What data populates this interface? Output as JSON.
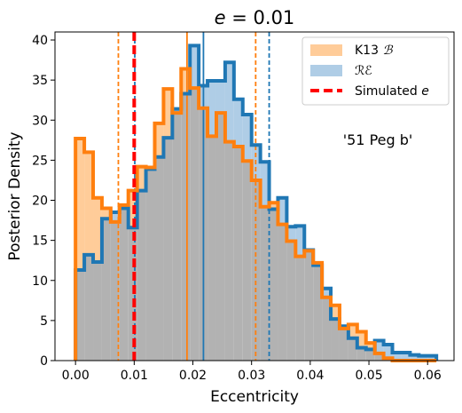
{
  "chart_data": {
    "type": "histogram",
    "title": "e = 0.01",
    "xlabel": "Eccentricity",
    "ylabel": "Posterior Density",
    "xlim": [
      -0.0035,
      0.0645
    ],
    "ylim": [
      0,
      41
    ],
    "xticks": [
      0.0,
      0.01,
      0.02,
      0.03,
      0.04,
      0.05,
      0.06
    ],
    "xtick_labels": [
      "0.00",
      "0.01",
      "0.02",
      "0.03",
      "0.04",
      "0.05",
      "0.06"
    ],
    "yticks": [
      0,
      5,
      10,
      15,
      20,
      25,
      30,
      35,
      40
    ],
    "ytick_labels": [
      "0",
      "5",
      "10",
      "15",
      "20",
      "25",
      "30",
      "35",
      "40"
    ],
    "grid": false,
    "legend_position": "upper right",
    "annotation": "'51 Peg b'",
    "bin_edges": [
      0.0,
      0.0015,
      0.003,
      0.0045,
      0.006,
      0.0075,
      0.009,
      0.0105,
      0.012,
      0.0135,
      0.015,
      0.0165,
      0.018,
      0.0195,
      0.021,
      0.0225,
      0.024,
      0.0255,
      0.027,
      0.0285,
      0.03,
      0.0315,
      0.033,
      0.0345,
      0.036,
      0.0375,
      0.039,
      0.0405,
      0.042,
      0.0435,
      0.045,
      0.0465,
      0.048,
      0.0495,
      0.051,
      0.0525,
      0.054,
      0.0555,
      0.057,
      0.0585,
      0.06,
      0.0615
    ],
    "series": [
      {
        "name": "K13 ℬ",
        "legend_label": "K13",
        "legend_symbol": "ℬ",
        "fill_color": "#ffcc99",
        "edge_color": "#ff7f0e",
        "values": [
          27.7,
          26.0,
          20.3,
          19.0,
          17.3,
          19.4,
          21.2,
          24.2,
          24.1,
          29.6,
          33.9,
          30.9,
          36.4,
          34.0,
          31.5,
          28.0,
          30.9,
          27.3,
          26.7,
          24.9,
          22.5,
          19.2,
          19.7,
          17.0,
          14.9,
          13.0,
          13.7,
          12.2,
          7.9,
          6.9,
          4.0,
          4.5,
          3.6,
          2.2,
          0.9,
          0.3,
          0.0,
          0.0,
          0.0,
          0.0,
          0.0
        ],
        "median": 0.019,
        "ci_low": 0.0073,
        "ci_high": 0.0307
      },
      {
        "name": "ℛℰ",
        "legend_label": "ℛℰ",
        "fill_color": "#afcde6",
        "edge_color": "#1f77b4",
        "values": [
          11.3,
          13.2,
          12.3,
          17.7,
          18.5,
          19.0,
          16.6,
          21.2,
          23.9,
          25.4,
          27.8,
          31.4,
          33.3,
          39.3,
          34.3,
          34.9,
          34.9,
          37.2,
          32.6,
          30.7,
          26.9,
          24.8,
          18.9,
          20.3,
          16.7,
          16.8,
          13.8,
          11.9,
          9.0,
          5.2,
          4.3,
          2.8,
          1.6,
          1.4,
          2.5,
          2.0,
          1.0,
          1.0,
          0.7,
          0.6,
          0.6
        ],
        "median": 0.0218,
        "ci_low": 0.0101,
        "ci_high": 0.033
      }
    ],
    "overlap_color": "#b2b2b2",
    "simulated": {
      "label": "Simulated",
      "symbol": "e",
      "value": 0.01,
      "color": "#ff0000"
    }
  }
}
